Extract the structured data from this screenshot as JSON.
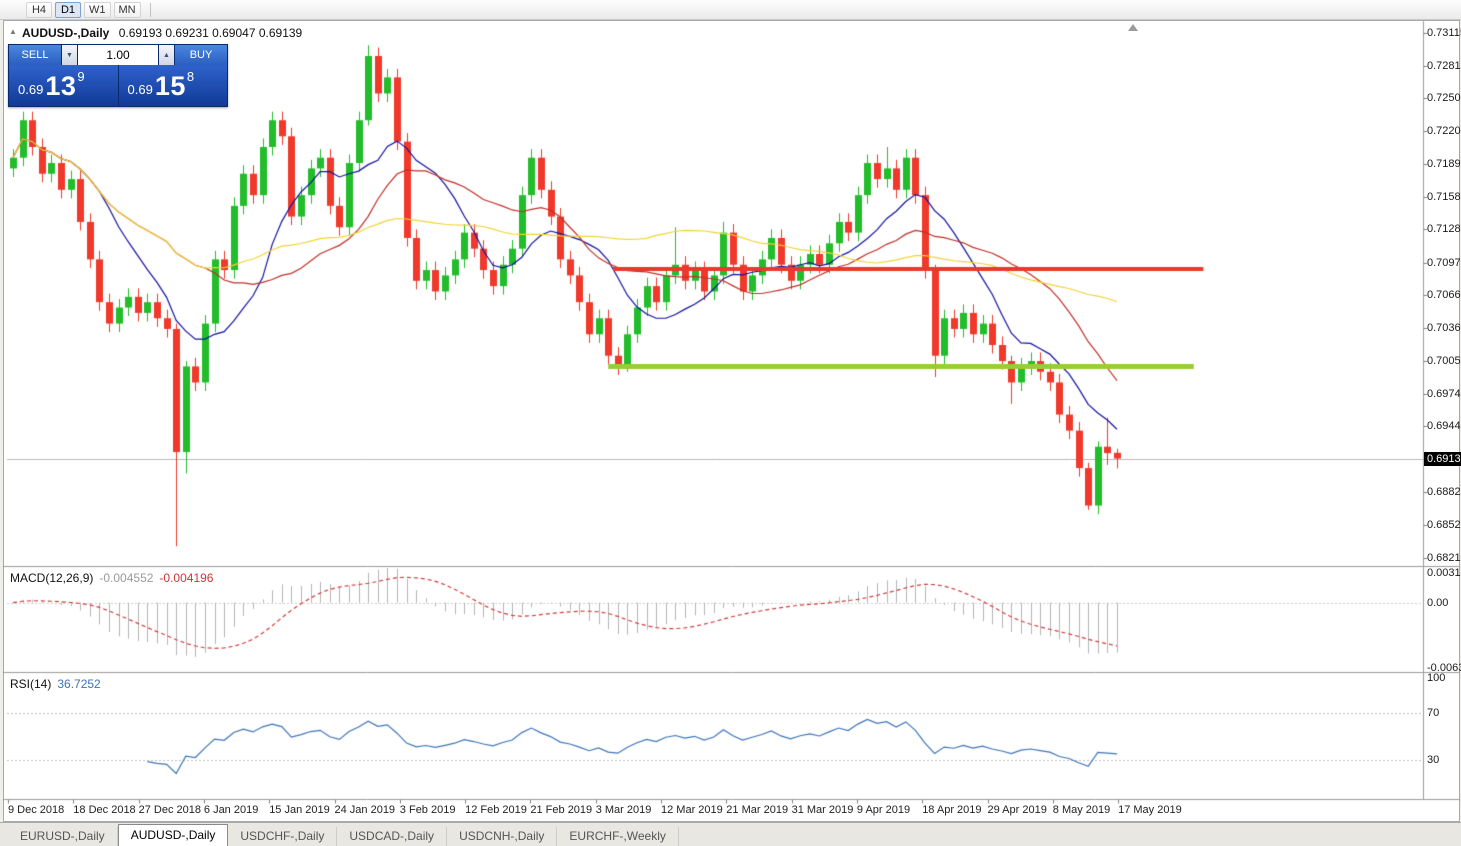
{
  "toolbar": {
    "periods": [
      {
        "label": "H4",
        "active": false
      },
      {
        "label": "D1",
        "active": true
      },
      {
        "label": "W1",
        "active": false
      },
      {
        "label": "MN",
        "active": false
      }
    ]
  },
  "chart": {
    "symbol_label": "AUDUSD-,Daily",
    "ohlc_text": "0.69193 0.69231 0.69047 0.69139",
    "current_price_tag": "0.69139"
  },
  "icons": {
    "panel_toggle": "▲",
    "spin_up": "▲",
    "spin_down": "▼"
  },
  "trade_panel": {
    "sell_label": "SELL",
    "buy_label": "BUY",
    "volume": "1.00",
    "sell_price": {
      "base": "0.69",
      "big": "13",
      "sup": "9"
    },
    "buy_price": {
      "base": "0.69",
      "big": "15",
      "sup": "8"
    }
  },
  "indicators": {
    "macd": {
      "label": "MACD(12,26,9)",
      "value_main": "-0.004552",
      "value_signal": "-0.004196"
    },
    "rsi": {
      "label": "RSI(14)",
      "value": "36.7252"
    }
  },
  "tabs": [
    {
      "label": "EURUSD-,Daily",
      "active": false
    },
    {
      "label": "AUDUSD-,Daily",
      "active": true
    },
    {
      "label": "USDCHF-,Daily",
      "active": false
    },
    {
      "label": "USDCAD-,Daily",
      "active": false
    },
    {
      "label": "USDCNH-,Daily",
      "active": false
    },
    {
      "label": "EURCHF-,Weekly",
      "active": false
    }
  ],
  "colors": {
    "candle_up": "#22bd2a",
    "candle_down": "#f0382b",
    "ma_fast": "#12129f",
    "ma_mid": "#c03028",
    "ma_slow": "#f2d336",
    "resistance_line": "#e8392d",
    "support_line": "#9acd32",
    "current_price_line": "#b8b8b8",
    "macd_histogram": "#b4b4b4",
    "macd_signal": "#d23b3b",
    "rsi_line": "#3d74b8",
    "price_tag_bg": "#000000",
    "accent_blue": "#2a60c0"
  },
  "chart_data": {
    "type": "candlestick",
    "title": "AUDUSD-,Daily",
    "y_range": [
      0.6821,
      0.73115
    ],
    "y_tick_labels": [
      "0.73115",
      "0.72810",
      "0.72505",
      "0.72200",
      "0.71895",
      "0.71585",
      "0.71280",
      "0.70970",
      "0.70665",
      "0.70360",
      "0.70050",
      "0.69745",
      "0.69440",
      "0.68825",
      "0.68520",
      "0.68210"
    ],
    "x_tick_labels": [
      "9 Dec 2018",
      "18 Dec 2018",
      "27 Dec 2018",
      "6 Jan 2019",
      "15 Jan 2019",
      "24 Jan 2019",
      "3 Feb 2019",
      "12 Feb 2019",
      "21 Feb 2019",
      "3 Mar 2019",
      "12 Mar 2019",
      "21 Mar 2019",
      "31 Mar 2019",
      "9 Apr 2019",
      "18 Apr 2019",
      "29 Apr 2019",
      "8 May 2019",
      "17 May 2019"
    ],
    "current_price": 0.69139,
    "candles": [
      [
        0.7185,
        0.7203,
        0.7177,
        0.7195
      ],
      [
        0.7195,
        0.7238,
        0.7187,
        0.723
      ],
      [
        0.723,
        0.7238,
        0.7197,
        0.7205
      ],
      [
        0.7205,
        0.7213,
        0.7172,
        0.718
      ],
      [
        0.718,
        0.7198,
        0.7172,
        0.719
      ],
      [
        0.719,
        0.7198,
        0.7157,
        0.7165
      ],
      [
        0.7165,
        0.7183,
        0.7157,
        0.7175
      ],
      [
        0.7175,
        0.7183,
        0.7127,
        0.7135
      ],
      [
        0.7135,
        0.7143,
        0.7092,
        0.71
      ],
      [
        0.71,
        0.7108,
        0.7052,
        0.706
      ],
      [
        0.706,
        0.7068,
        0.7032,
        0.704
      ],
      [
        0.704,
        0.7063,
        0.7032,
        0.7055
      ],
      [
        0.7055,
        0.7073,
        0.7047,
        0.7065
      ],
      [
        0.7065,
        0.7073,
        0.7042,
        0.705
      ],
      [
        0.705,
        0.7068,
        0.7042,
        0.706
      ],
      [
        0.706,
        0.7068,
        0.7037,
        0.7045
      ],
      [
        0.7045,
        0.7053,
        0.7027,
        0.7035
      ],
      [
        0.7035,
        0.704,
        0.6832,
        0.692
      ],
      [
        0.692,
        0.7005,
        0.69,
        0.7
      ],
      [
        0.7,
        0.7008,
        0.6977,
        0.6985
      ],
      [
        0.6985,
        0.7048,
        0.6977,
        0.704
      ],
      [
        0.704,
        0.7108,
        0.7032,
        0.71
      ],
      [
        0.71,
        0.7108,
        0.7082,
        0.709
      ],
      [
        0.709,
        0.7158,
        0.7082,
        0.715
      ],
      [
        0.715,
        0.7188,
        0.7142,
        0.718
      ],
      [
        0.718,
        0.7188,
        0.7152,
        0.716
      ],
      [
        0.716,
        0.7213,
        0.7152,
        0.7205
      ],
      [
        0.7205,
        0.7238,
        0.7197,
        0.723
      ],
      [
        0.723,
        0.7238,
        0.7207,
        0.7215
      ],
      [
        0.7215,
        0.7223,
        0.7132,
        0.714
      ],
      [
        0.714,
        0.7168,
        0.7132,
        0.716
      ],
      [
        0.716,
        0.7193,
        0.7152,
        0.7185
      ],
      [
        0.7185,
        0.7203,
        0.7177,
        0.7195
      ],
      [
        0.7195,
        0.7203,
        0.7142,
        0.715
      ],
      [
        0.715,
        0.7158,
        0.7122,
        0.713
      ],
      [
        0.713,
        0.7198,
        0.7122,
        0.719
      ],
      [
        0.719,
        0.7238,
        0.7182,
        0.723
      ],
      [
        0.723,
        0.73,
        0.7225,
        0.729
      ],
      [
        0.729,
        0.7298,
        0.7247,
        0.7255
      ],
      [
        0.7255,
        0.7278,
        0.7247,
        0.727
      ],
      [
        0.727,
        0.7278,
        0.7202,
        0.721
      ],
      [
        0.721,
        0.7218,
        0.7112,
        0.712
      ],
      [
        0.712,
        0.7128,
        0.7072,
        0.708
      ],
      [
        0.708,
        0.7098,
        0.7072,
        0.709
      ],
      [
        0.709,
        0.7098,
        0.7062,
        0.707
      ],
      [
        0.707,
        0.7093,
        0.7062,
        0.7085
      ],
      [
        0.7085,
        0.7108,
        0.7077,
        0.71
      ],
      [
        0.71,
        0.7133,
        0.7092,
        0.7125
      ],
      [
        0.7125,
        0.7133,
        0.7102,
        0.711
      ],
      [
        0.711,
        0.7118,
        0.7082,
        0.709
      ],
      [
        0.709,
        0.7098,
        0.7067,
        0.7075
      ],
      [
        0.7075,
        0.7103,
        0.7067,
        0.7095
      ],
      [
        0.7095,
        0.7118,
        0.7087,
        0.711
      ],
      [
        0.711,
        0.7168,
        0.7102,
        0.716
      ],
      [
        0.716,
        0.7203,
        0.7152,
        0.7195
      ],
      [
        0.7195,
        0.7203,
        0.7157,
        0.7165
      ],
      [
        0.7165,
        0.7173,
        0.7132,
        0.714
      ],
      [
        0.714,
        0.7148,
        0.7092,
        0.71
      ],
      [
        0.71,
        0.7108,
        0.7077,
        0.7085
      ],
      [
        0.7085,
        0.7093,
        0.7052,
        0.706
      ],
      [
        0.706,
        0.7068,
        0.7022,
        0.703
      ],
      [
        0.703,
        0.7053,
        0.7022,
        0.7045
      ],
      [
        0.7045,
        0.7053,
        0.7002,
        0.701
      ],
      [
        0.701,
        0.7018,
        0.6992,
        0.7
      ],
      [
        0.7,
        0.7038,
        0.6995,
        0.703
      ],
      [
        0.703,
        0.7063,
        0.7022,
        0.7055
      ],
      [
        0.7055,
        0.7083,
        0.7047,
        0.7075
      ],
      [
        0.7075,
        0.7083,
        0.7052,
        0.706
      ],
      [
        0.706,
        0.7093,
        0.7052,
        0.7085
      ],
      [
        0.7085,
        0.713,
        0.7077,
        0.7095
      ],
      [
        0.7095,
        0.7103,
        0.7072,
        0.708
      ],
      [
        0.708,
        0.7098,
        0.7072,
        0.709
      ],
      [
        0.709,
        0.7098,
        0.7062,
        0.707
      ],
      [
        0.707,
        0.7093,
        0.7062,
        0.7085
      ],
      [
        0.7085,
        0.7135,
        0.7077,
        0.7125
      ],
      [
        0.7125,
        0.7133,
        0.7087,
        0.7095
      ],
      [
        0.7095,
        0.7103,
        0.7062,
        0.707
      ],
      [
        0.707,
        0.7093,
        0.7062,
        0.7085
      ],
      [
        0.7085,
        0.7108,
        0.7077,
        0.71
      ],
      [
        0.71,
        0.7128,
        0.7092,
        0.712
      ],
      [
        0.712,
        0.7128,
        0.7087,
        0.7095
      ],
      [
        0.7095,
        0.7103,
        0.7072,
        0.708
      ],
      [
        0.708,
        0.7103,
        0.7072,
        0.7095
      ],
      [
        0.7095,
        0.7113,
        0.7087,
        0.7105
      ],
      [
        0.7105,
        0.7113,
        0.7087,
        0.7095
      ],
      [
        0.7095,
        0.7123,
        0.7087,
        0.7115
      ],
      [
        0.7115,
        0.7143,
        0.7107,
        0.7135
      ],
      [
        0.7135,
        0.7143,
        0.7117,
        0.7125
      ],
      [
        0.7125,
        0.7168,
        0.7117,
        0.716
      ],
      [
        0.716,
        0.7198,
        0.7152,
        0.719
      ],
      [
        0.719,
        0.7198,
        0.7167,
        0.7175
      ],
      [
        0.7175,
        0.7205,
        0.7167,
        0.7185
      ],
      [
        0.7185,
        0.7193,
        0.7157,
        0.7165
      ],
      [
        0.7165,
        0.7203,
        0.7157,
        0.7195
      ],
      [
        0.7195,
        0.7203,
        0.7152,
        0.716
      ],
      [
        0.716,
        0.7168,
        0.7082,
        0.709
      ],
      [
        0.709,
        0.7095,
        0.699,
        0.701
      ],
      [
        0.701,
        0.7053,
        0.7002,
        0.7045
      ],
      [
        0.7045,
        0.7053,
        0.7027,
        0.7035
      ],
      [
        0.7035,
        0.7058,
        0.7027,
        0.705
      ],
      [
        0.705,
        0.7058,
        0.7022,
        0.703
      ],
      [
        0.703,
        0.7048,
        0.7022,
        0.704
      ],
      [
        0.704,
        0.7048,
        0.7012,
        0.702
      ],
      [
        0.702,
        0.7028,
        0.6997,
        0.7005
      ],
      [
        0.7005,
        0.701,
        0.6965,
        0.6985
      ],
      [
        0.6985,
        0.7008,
        0.6977,
        0.7
      ],
      [
        0.7,
        0.7013,
        0.6992,
        0.7005
      ],
      [
        0.7005,
        0.7013,
        0.6987,
        0.6995
      ],
      [
        0.6995,
        0.7003,
        0.6977,
        0.6985
      ],
      [
        0.6985,
        0.6993,
        0.6947,
        0.6955
      ],
      [
        0.6955,
        0.6963,
        0.6932,
        0.694
      ],
      [
        0.694,
        0.6948,
        0.6897,
        0.6905
      ],
      [
        0.6905,
        0.691,
        0.6866,
        0.687
      ],
      [
        0.687,
        0.693,
        0.6862,
        0.6925
      ],
      [
        0.6925,
        0.6952,
        0.6908,
        0.6919
      ],
      [
        0.69193,
        0.69231,
        0.69047,
        0.69139
      ]
    ],
    "moving_averages": [
      {
        "period": 10,
        "color_key": "ma_fast"
      },
      {
        "period": 21,
        "color_key": "ma_mid"
      },
      {
        "period": 50,
        "color_key": "ma_slow"
      }
    ],
    "hlines": [
      {
        "price": 0.7091,
        "color_key": "resistance_line",
        "width": 4,
        "from_index": 62.5,
        "to_index": 124
      },
      {
        "price": 0.7,
        "color_key": "support_line",
        "width": 5,
        "from_index": 62,
        "to_index": 123
      }
    ],
    "macd": {
      "fast": 12,
      "slow": 26,
      "signal": 9,
      "range": [
        -0.006317,
        0.003164
      ],
      "scale_labels": [
        "0.003164",
        "0.00",
        "-0.006317"
      ]
    },
    "rsi": {
      "period": 14,
      "levels": [
        70,
        30
      ],
      "scale_labels": [
        "100",
        "70",
        "30"
      ]
    }
  }
}
